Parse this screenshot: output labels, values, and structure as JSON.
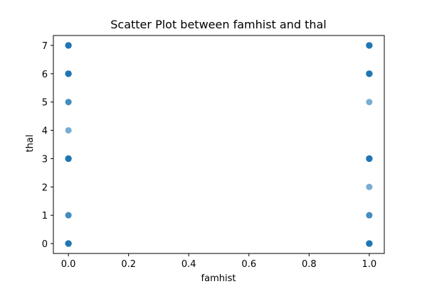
{
  "chart_data": {
    "type": "scatter",
    "title": "Scatter Plot between famhist and thal",
    "xlabel": "famhist",
    "ylabel": "thal",
    "xlim": [
      -0.05,
      1.05
    ],
    "ylim": [
      -0.35,
      7.35
    ],
    "x_ticks": [
      0.0,
      0.2,
      0.4,
      0.6,
      0.8,
      1.0
    ],
    "x_tick_labels": [
      "0.0",
      "0.2",
      "0.4",
      "0.6",
      "0.8",
      "1.0"
    ],
    "y_ticks": [
      0,
      1,
      2,
      3,
      4,
      5,
      6,
      7
    ],
    "y_tick_labels": [
      "0",
      "1",
      "2",
      "3",
      "4",
      "5",
      "6",
      "7"
    ],
    "grid": false,
    "marker_color": "#1f77b4",
    "marker_alpha": 0.6,
    "points": [
      {
        "x": 0,
        "y": 7,
        "count": 12
      },
      {
        "x": 0,
        "y": 6,
        "count": 12
      },
      {
        "x": 0,
        "y": 5,
        "count": 2
      },
      {
        "x": 0,
        "y": 4,
        "count": 1
      },
      {
        "x": 0,
        "y": 3,
        "count": 12
      },
      {
        "x": 0,
        "y": 1,
        "count": 2
      },
      {
        "x": 0,
        "y": 0,
        "count": 12
      },
      {
        "x": 1,
        "y": 7,
        "count": 12
      },
      {
        "x": 1,
        "y": 6,
        "count": 12
      },
      {
        "x": 1,
        "y": 5,
        "count": 1
      },
      {
        "x": 1,
        "y": 3,
        "count": 12
      },
      {
        "x": 1,
        "y": 2,
        "count": 1
      },
      {
        "x": 1,
        "y": 1,
        "count": 2
      },
      {
        "x": 1,
        "y": 0,
        "count": 12
      }
    ]
  }
}
